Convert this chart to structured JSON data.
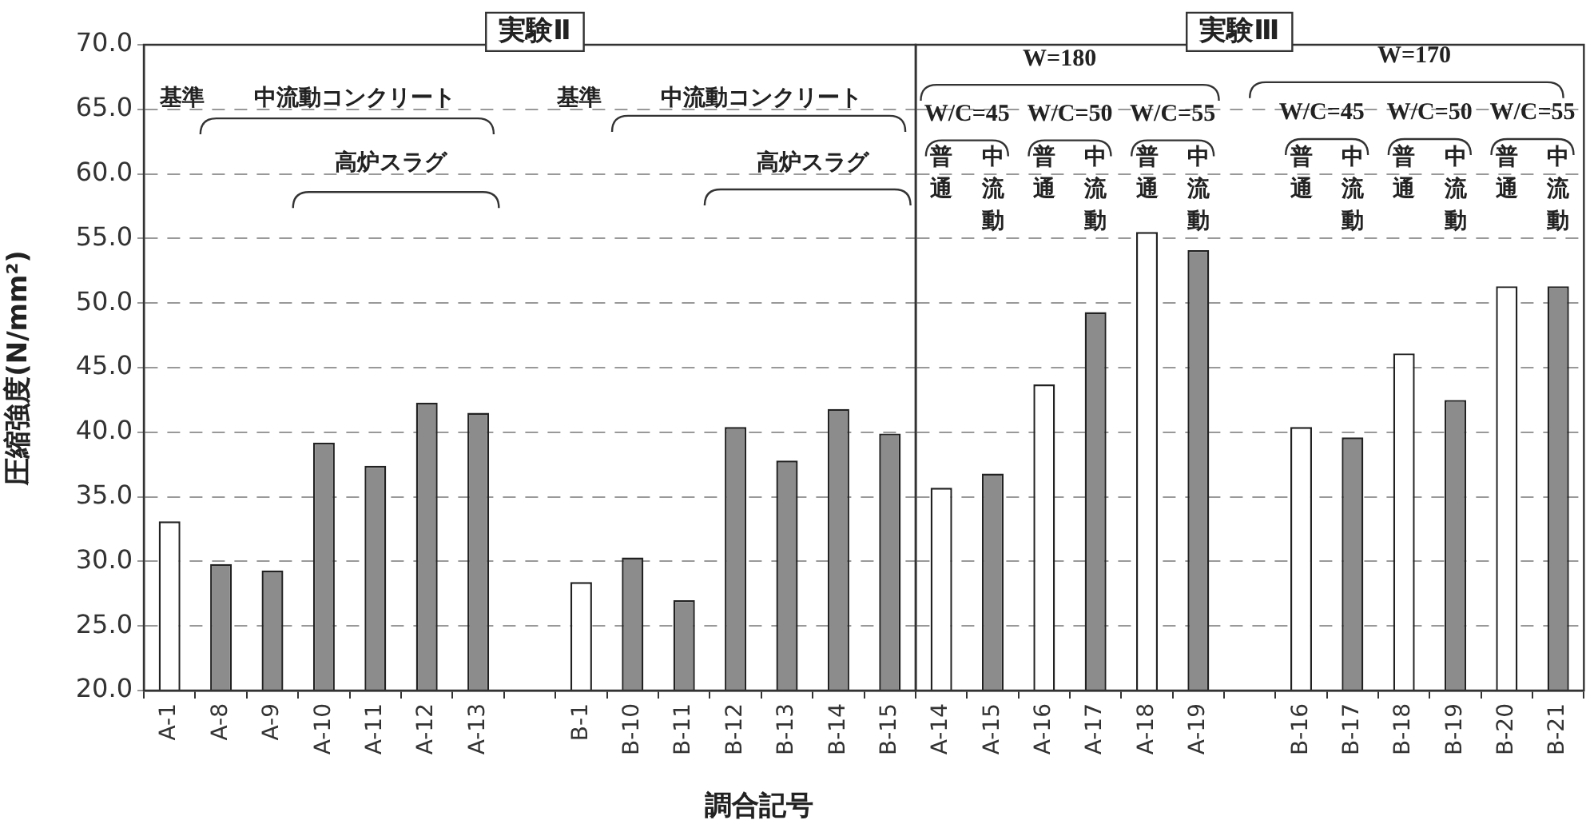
{
  "chart_data": [
    {
      "type": "bar",
      "title": "実験Ⅱ",
      "xlabel": "調合記号",
      "ylabel": "圧縮強度(N/mm²)",
      "categories": [
        "A-1",
        "A-8",
        "A-9",
        "A-10",
        "A-11",
        "A-12",
        "A-13",
        null,
        "B-1",
        "B-10",
        "B-11",
        "B-12",
        "B-13",
        "B-14",
        "B-15"
      ],
      "values": [
        33.1,
        29.8,
        29.3,
        39.2,
        37.4,
        42.3,
        41.5,
        null,
        28.4,
        30.3,
        27.0,
        40.4,
        37.8,
        41.8,
        39.9
      ],
      "colors": [
        "#ffffff",
        "#8c8c8c",
        "#8c8c8c",
        "#8c8c8c",
        "#8c8c8c",
        "#8c8c8c",
        "#8c8c8c",
        null,
        "#ffffff",
        "#8c8c8c",
        "#8c8c8c",
        "#8c8c8c",
        "#8c8c8c",
        "#8c8c8c",
        "#8c8c8c"
      ],
      "ylim": [
        20,
        70
      ],
      "yticks": [
        {
          "value": 20,
          "label": "20.0"
        },
        {
          "value": 25,
          "label": "25.0"
        },
        {
          "value": 30,
          "label": "30.0"
        },
        {
          "value": 35,
          "label": "35.0"
        },
        {
          "value": 40,
          "label": "40.0"
        },
        {
          "value": 45,
          "label": "45.0"
        },
        {
          "value": 50,
          "label": "50.0"
        },
        {
          "value": 55,
          "label": "55.0"
        },
        {
          "value": 60,
          "label": "60.0"
        },
        {
          "value": 65,
          "label": "65.0"
        },
        {
          "value": 70,
          "label": "70.0"
        }
      ],
      "grid": "y",
      "legend": false,
      "annotations": [
        "基準",
        "中流動コンクリート",
        "高炉スラグ",
        "基準",
        "中流動コンクリート",
        "高炉スラグ"
      ]
    },
    {
      "type": "bar",
      "title": "実験Ⅲ",
      "categories": [
        "A-14",
        "A-15",
        "A-16",
        "A-17",
        "A-18",
        "A-19",
        null,
        "B-16",
        "B-17",
        "B-18",
        "B-19",
        "B-20",
        "B-21"
      ],
      "values": [
        35.7,
        36.8,
        43.7,
        49.3,
        55.5,
        54.1,
        null,
        40.4,
        39.6,
        46.1,
        42.5,
        51.3,
        51.3
      ],
      "colors": [
        "#ffffff",
        "#8c8c8c",
        "#ffffff",
        "#8c8c8c",
        "#ffffff",
        "#8c8c8c",
        null,
        "#ffffff",
        "#8c8c8c",
        "#ffffff",
        "#8c8c8c",
        "#ffffff",
        "#8c8c8c"
      ],
      "ylim": [
        20,
        70
      ],
      "yticks": [
        20,
        25,
        30,
        35,
        40,
        45,
        50,
        55,
        60,
        65,
        70
      ],
      "tick_labels": "x",
      "grid": "y",
      "legend": false,
      "annotations": [
        "W=180",
        "W=170",
        "W/C=45",
        "W/C=50",
        "W/C=55",
        "W/C=45",
        "W/C=50",
        "W/C=55",
        "普通",
        "中流動",
        "普通",
        "中流動",
        "普通",
        "中流動",
        "普通",
        "中流動",
        "普通",
        "中流動",
        "普通",
        "中流動"
      ]
    }
  ]
}
